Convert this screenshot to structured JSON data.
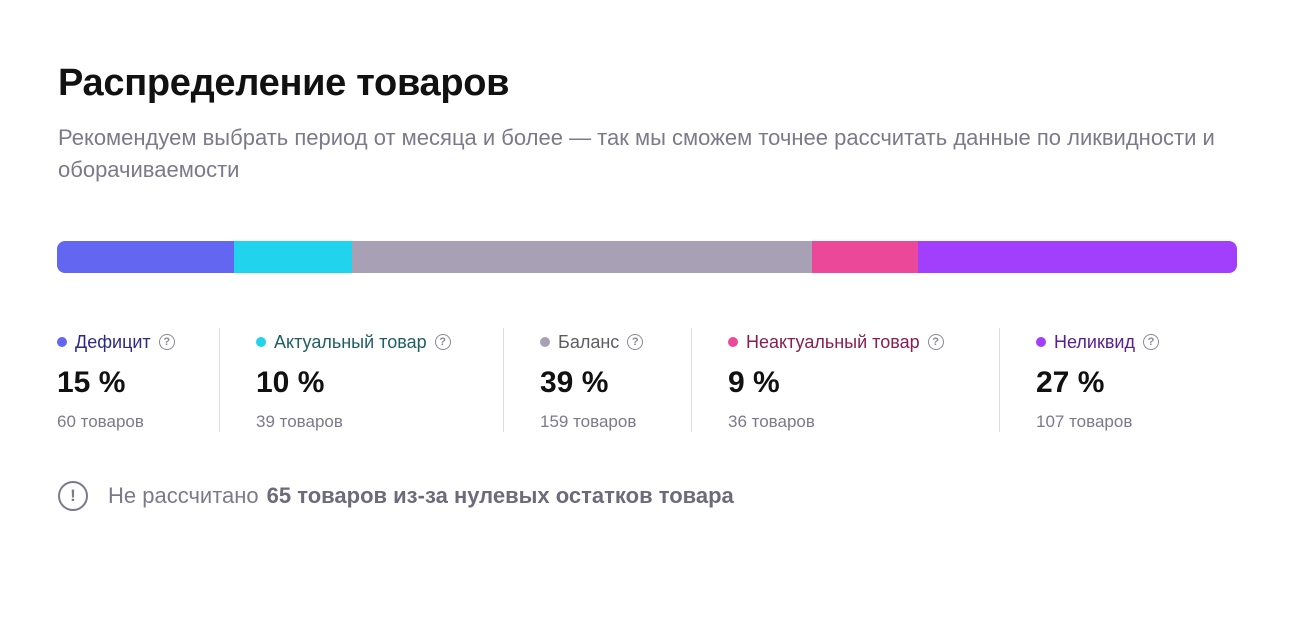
{
  "title": "Распределение товаров",
  "subtitle": "Рекомендуем выбрать период от месяца и более — так мы сможем точнее рассчитать данные по ликвидности и оборачиваемости",
  "categories": [
    {
      "label": "Дефицит",
      "percent_text": "15 %",
      "count_text": "60 товаров",
      "value": 15,
      "color": "#6366f1",
      "label_color": "#2b2a8a"
    },
    {
      "label": "Актуальный товар",
      "percent_text": "10 %",
      "count_text": "39 товаров",
      "value": 10,
      "color": "#22d3ee",
      "label_color": "#1f5f63"
    },
    {
      "label": "Баланс",
      "percent_text": "39 %",
      "count_text": "159 товаров",
      "value": 39,
      "color": "#a8a0b4",
      "label_color": "#5f5b66"
    },
    {
      "label": "Неактуальный товар",
      "percent_text": "9 %",
      "count_text": "36 товаров",
      "value": 9,
      "color": "#ec4899",
      "label_color": "#8a1d52"
    },
    {
      "label": "Неликвид",
      "percent_text": "27 %",
      "count_text": "107 товаров",
      "value": 27,
      "color": "#a13ffc",
      "label_color": "#5b1d8f"
    }
  ],
  "help_glyph": "?",
  "notice": {
    "icon": "exclamation-circle-icon",
    "icon_glyph": "!",
    "prefix": "Не рассчитано",
    "emphasis": "65 товаров из-за нулевых остатков товара"
  }
}
